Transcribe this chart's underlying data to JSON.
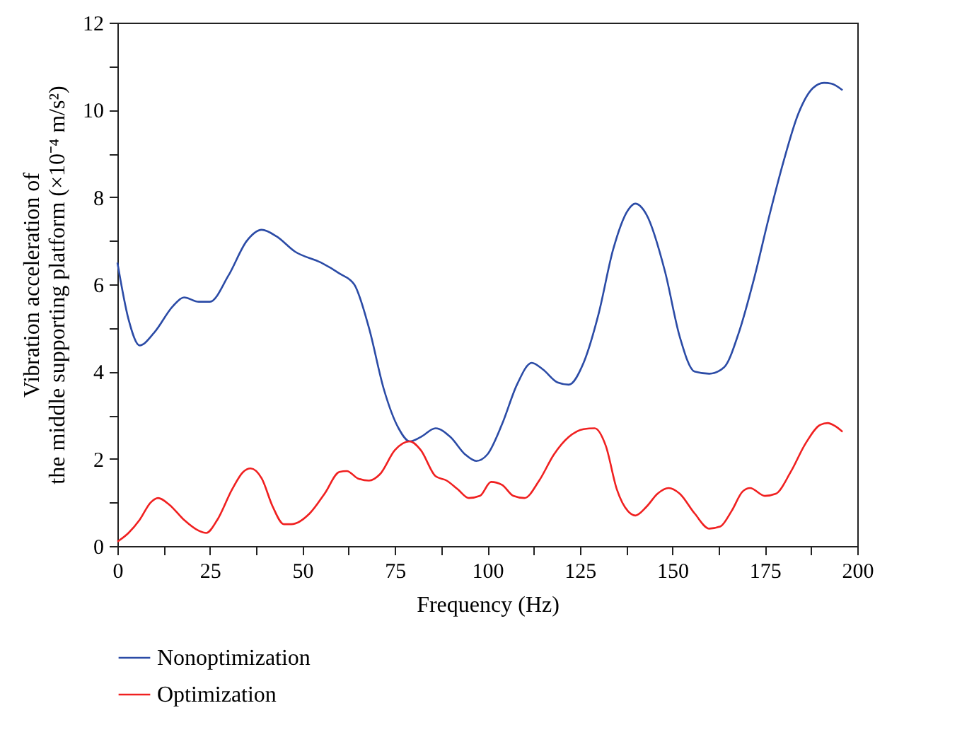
{
  "chart_data": {
    "type": "line",
    "xlabel": "Frequency (Hz)",
    "ylabel": "Vibration acceleration of\nthe middle supporting platform (×10⁻⁴ m/s²)",
    "xlim": [
      0,
      200
    ],
    "ylim": [
      0,
      12
    ],
    "xticks": [
      0,
      {
        "value": 12.5,
        "label": null
      },
      25,
      {
        "value": 37.5,
        "label": null
      },
      50,
      {
        "value": 62.5,
        "label": null
      },
      75,
      {
        "value": 87.5,
        "label": null
      },
      100,
      {
        "value": 112.5,
        "label": null
      },
      125,
      {
        "value": 137.5,
        "label": null
      },
      150,
      {
        "value": 162.5,
        "label": null
      },
      175,
      {
        "value": 187.5,
        "label": null
      },
      200
    ],
    "yticks": [
      0,
      {
        "value": 1,
        "label": null
      },
      2,
      {
        "value": 3,
        "label": null
      },
      4,
      {
        "value": 5,
        "label": null
      },
      6,
      {
        "value": 7,
        "label": null
      },
      8,
      {
        "value": 9,
        "label": null
      },
      10,
      {
        "value": 11,
        "label": null
      },
      12
    ],
    "grid": false,
    "legend": "bottom",
    "marker": "none",
    "line_style": "solid",
    "series": [
      {
        "name": "Nonoptimization",
        "color": "#2b4ba6",
        "x": [
          0,
          3,
          6,
          10,
          15,
          18,
          22,
          25,
          30,
          35,
          39,
          43,
          48,
          55,
          60,
          64,
          68,
          72,
          76,
          79,
          82,
          86,
          90,
          94,
          97,
          100,
          104,
          108,
          112,
          115,
          119,
          122,
          126,
          130,
          134,
          138,
          140,
          143,
          148,
          152,
          156,
          160,
          164,
          168,
          172,
          176,
          180,
          184,
          188,
          191,
          193,
          196
        ],
        "values": [
          6.5,
          5.2,
          4.6,
          4.9,
          5.5,
          5.7,
          5.6,
          5.6,
          6.2,
          7.0,
          7.25,
          7.1,
          6.75,
          6.5,
          6.25,
          6.0,
          5.0,
          3.6,
          2.7,
          2.4,
          2.5,
          2.7,
          2.5,
          2.1,
          1.95,
          2.1,
          2.8,
          3.7,
          4.2,
          4.05,
          3.75,
          3.7,
          4.2,
          5.3,
          6.8,
          7.7,
          7.85,
          7.6,
          6.3,
          4.8,
          4.0,
          3.95,
          4.1,
          4.9,
          6.1,
          7.5,
          8.8,
          9.9,
          10.5,
          10.62,
          10.6,
          10.45
        ]
      },
      {
        "name": "Optimization",
        "color": "#f02020",
        "x": [
          0,
          3,
          6,
          9,
          11,
          14,
          18,
          22,
          24,
          27,
          31,
          34,
          36,
          39,
          42,
          45,
          47,
          52,
          56,
          60,
          62,
          65,
          68,
          71,
          75,
          79,
          82,
          86,
          89,
          92,
          95,
          98,
          101,
          104,
          107,
          110,
          114,
          118,
          122,
          126,
          129,
          132,
          135,
          138,
          140,
          143,
          146,
          149,
          152,
          156,
          160,
          163,
          166,
          169,
          171,
          175,
          178,
          182,
          186,
          190,
          192,
          194,
          196
        ],
        "values": [
          0.1,
          0.3,
          0.6,
          1.0,
          1.1,
          0.95,
          0.6,
          0.35,
          0.3,
          0.6,
          1.3,
          1.7,
          1.78,
          1.55,
          0.9,
          0.5,
          0.5,
          0.75,
          1.2,
          1.7,
          1.72,
          1.55,
          1.5,
          1.65,
          2.2,
          2.4,
          2.2,
          1.6,
          1.5,
          1.3,
          1.1,
          1.15,
          1.47,
          1.4,
          1.15,
          1.1,
          1.5,
          2.1,
          2.5,
          2.68,
          2.7,
          2.3,
          1.3,
          0.8,
          0.7,
          0.9,
          1.2,
          1.33,
          1.2,
          0.75,
          0.4,
          0.45,
          0.8,
          1.25,
          1.33,
          1.15,
          1.2,
          1.7,
          2.35,
          2.78,
          2.82,
          2.75,
          2.62
        ]
      }
    ]
  }
}
